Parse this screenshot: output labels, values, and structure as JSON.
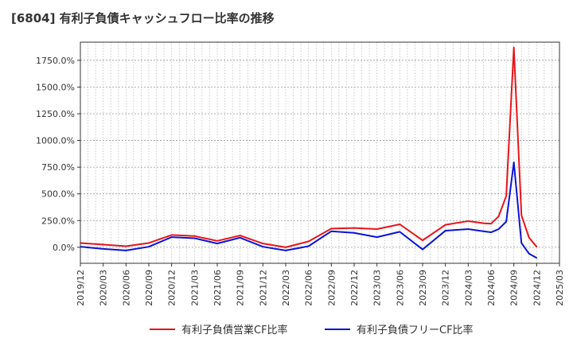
{
  "chart_data": {
    "type": "line",
    "title": "[6804]  有利子負債キャッシュフロー比率の推移",
    "xlabel": "",
    "ylabel": "",
    "ylim": [
      -150,
      1920
    ],
    "yticks": [
      0,
      250,
      500,
      750,
      1000,
      1250,
      1500,
      1750
    ],
    "ytick_labels": [
      "0.0%",
      "250.0%",
      "500.0%",
      "750.0%",
      "1000.0%",
      "1250.0%",
      "1500.0%",
      "1750.0%"
    ],
    "xlim": [
      "2019/12",
      "2025/03"
    ],
    "xticks": [
      "2019/12",
      "2020/03",
      "2020/06",
      "2020/09",
      "2020/12",
      "2021/03",
      "2021/06",
      "2021/09",
      "2021/12",
      "2022/03",
      "2022/06",
      "2022/09",
      "2022/12",
      "2023/03",
      "2023/06",
      "2023/09",
      "2023/12",
      "2024/03",
      "2024/06",
      "2024/09",
      "2024/12",
      "2025/03"
    ],
    "grid": true,
    "legend_position": "bottom",
    "series": [
      {
        "name": "有利子負債営業CF比率",
        "color": "#e8141b",
        "points": [
          [
            "2019/12",
            40
          ],
          [
            "2020/03",
            25
          ],
          [
            "2020/06",
            10
          ],
          [
            "2020/09",
            40
          ],
          [
            "2020/12",
            115
          ],
          [
            "2021/03",
            105
          ],
          [
            "2021/06",
            60
          ],
          [
            "2021/09",
            110
          ],
          [
            "2021/12",
            35
          ],
          [
            "2022/03",
            0
          ],
          [
            "2022/06",
            55
          ],
          [
            "2022/09",
            175
          ],
          [
            "2022/12",
            180
          ],
          [
            "2023/03",
            170
          ],
          [
            "2023/06",
            215
          ],
          [
            "2023/09",
            65
          ],
          [
            "2023/12",
            210
          ],
          [
            "2024/03",
            245
          ],
          [
            "2024/04",
            235
          ],
          [
            "2024/05",
            225
          ],
          [
            "2024/06",
            220
          ],
          [
            "2024/07",
            290
          ],
          [
            "2024/08",
            480
          ],
          [
            "2024/09",
            1870
          ],
          [
            "2024/10",
            300
          ],
          [
            "2024/11",
            90
          ],
          [
            "2024/12",
            5
          ]
        ]
      },
      {
        "name": "有利子負債フリーCF比率",
        "color": "#0b13d6",
        "points": [
          [
            "2019/12",
            5
          ],
          [
            "2020/03",
            -15
          ],
          [
            "2020/06",
            -30
          ],
          [
            "2020/09",
            5
          ],
          [
            "2020/12",
            95
          ],
          [
            "2021/03",
            85
          ],
          [
            "2021/06",
            35
          ],
          [
            "2021/09",
            90
          ],
          [
            "2021/12",
            5
          ],
          [
            "2022/03",
            -30
          ],
          [
            "2022/06",
            10
          ],
          [
            "2022/09",
            150
          ],
          [
            "2022/12",
            135
          ],
          [
            "2023/03",
            95
          ],
          [
            "2023/06",
            145
          ],
          [
            "2023/09",
            -20
          ],
          [
            "2023/12",
            155
          ],
          [
            "2024/03",
            170
          ],
          [
            "2024/04",
            160
          ],
          [
            "2024/05",
            150
          ],
          [
            "2024/06",
            140
          ],
          [
            "2024/07",
            170
          ],
          [
            "2024/08",
            240
          ],
          [
            "2024/09",
            795
          ],
          [
            "2024/10",
            40
          ],
          [
            "2024/11",
            -60
          ],
          [
            "2024/12",
            -100
          ]
        ]
      }
    ]
  }
}
